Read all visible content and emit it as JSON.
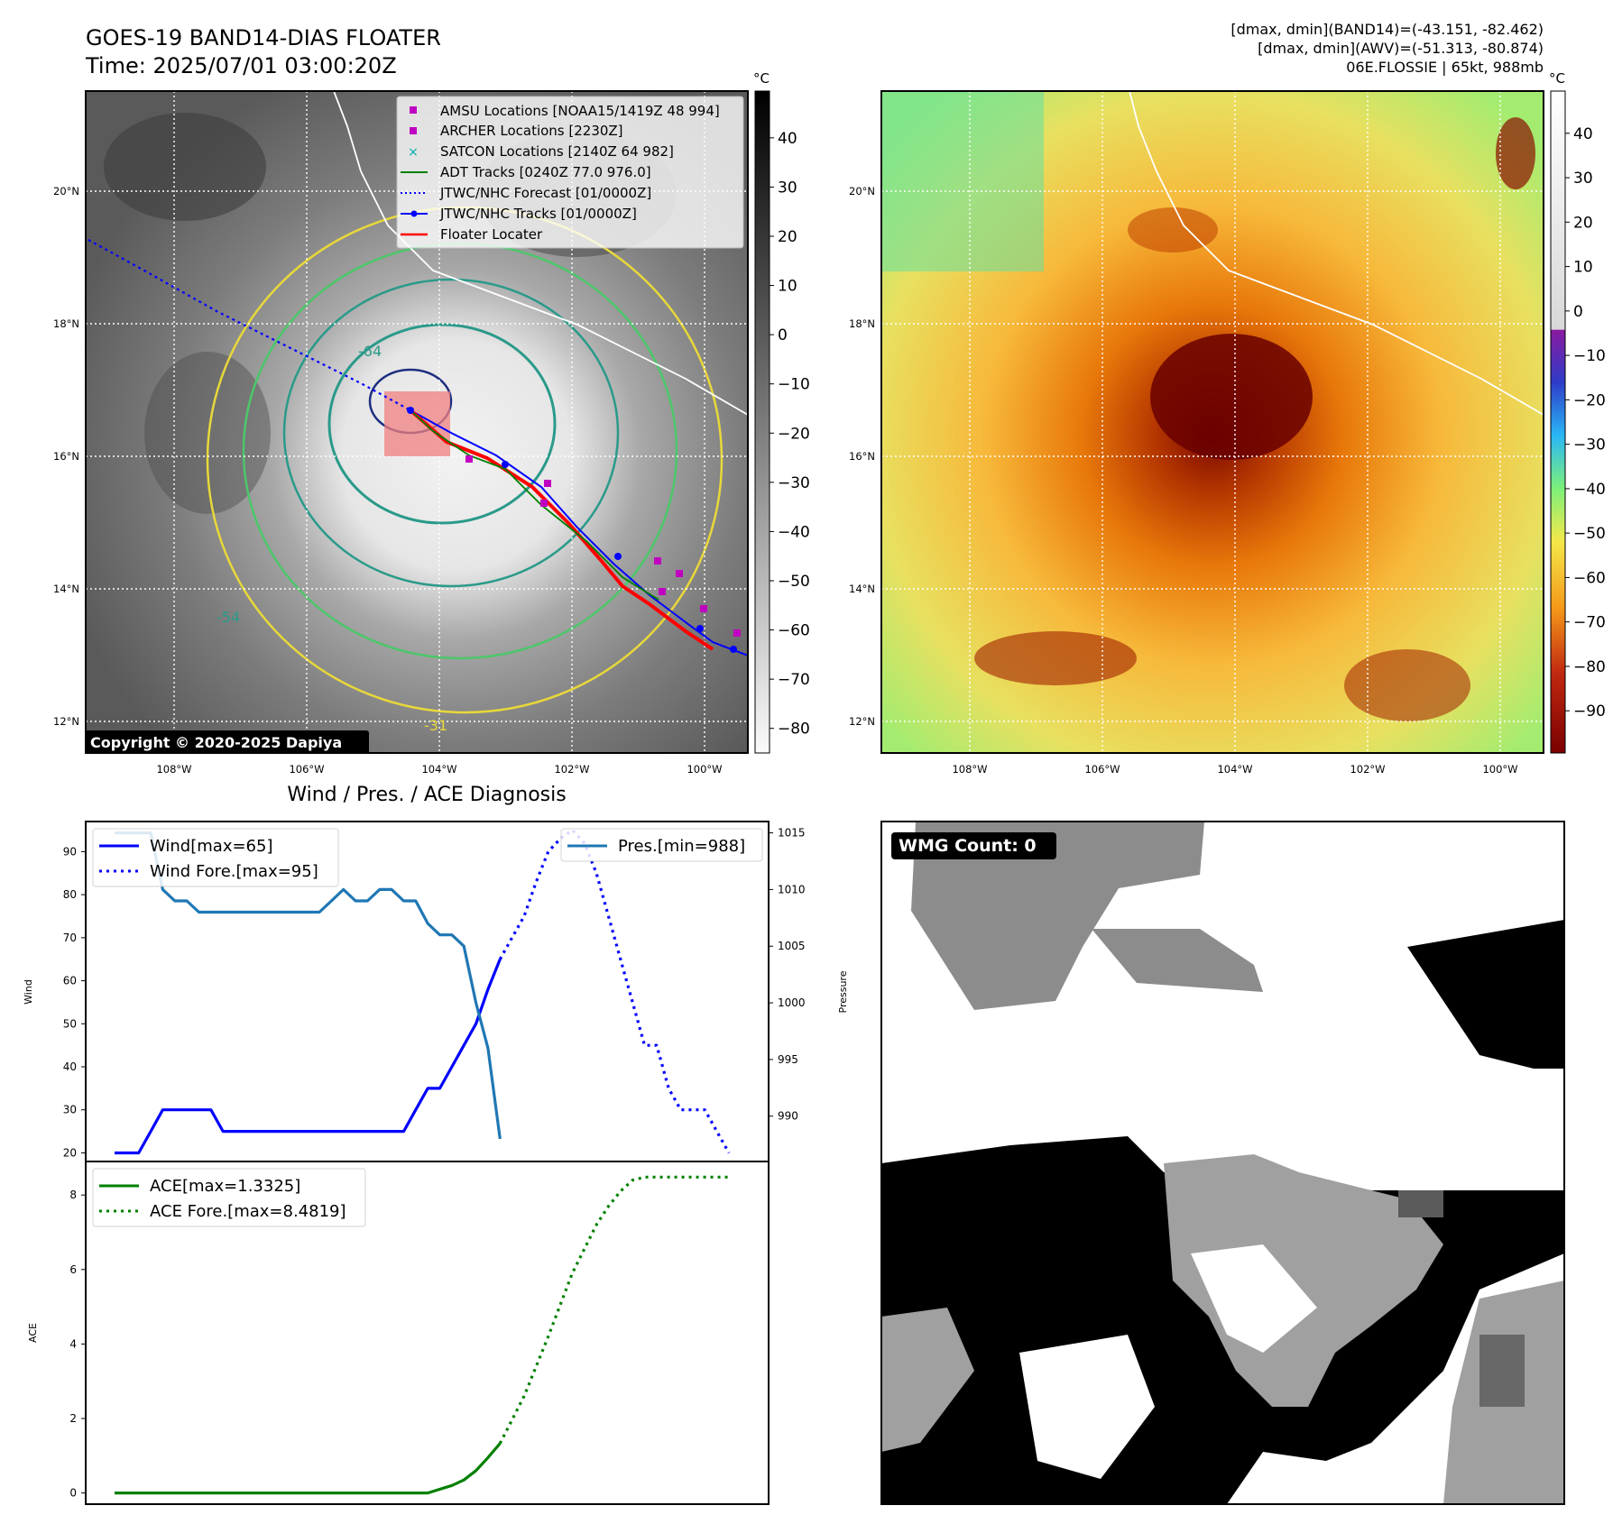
{
  "header": {
    "title_line1": "GOES-19 BAND14-DIAS FLOATER",
    "title_line2": "Time: 2025/07/01 03:00:20Z",
    "info_line1": "[dmax, dmin](BAND14)=(-43.151, -82.462)",
    "info_line2": "[dmax, dmin](AWV)=(-51.313, -80.874)",
    "info_line3": "06E.FLOSSIE | 65kt, 988mb"
  },
  "map": {
    "lat_labels": [
      "20°N",
      "18°N",
      "16°N",
      "14°N",
      "12°N"
    ],
    "lon_labels": [
      "108°W",
      "106°W",
      "104°W",
      "102°W",
      "100°W"
    ],
    "copyright": "Copyright © 2020-2025 Dapiya",
    "contour_labels": [
      "-64",
      "-54",
      "-31"
    ],
    "legend": [
      {
        "label": "AMSU Locations [NOAA15/1419Z 48 994]",
        "marker": "square",
        "color": "#c000c0"
      },
      {
        "label": "ARCHER Locations [2230Z]",
        "marker": "square",
        "color": "#c000c0"
      },
      {
        "label": "SATCON Locations [2140Z 64 982]",
        "marker": "x",
        "color": "#00b0b0"
      },
      {
        "label": "ADT Tracks [0240Z 77.0 976.0]",
        "marker": "line",
        "color": "#008000"
      },
      {
        "label": "JTWC/NHC Forecast [01/0000Z]",
        "marker": "dotted",
        "color": "#0000ff"
      },
      {
        "label": "JTWC/NHC Tracks [01/0000Z]",
        "marker": "line-dot",
        "color": "#0000ff"
      },
      {
        "label": "Floater Locater",
        "marker": "line",
        "color": "#ff0000"
      }
    ]
  },
  "colorbar_left": {
    "unit": "°C",
    "ticks": [
      "40",
      "30",
      "20",
      "10",
      "0",
      "−10",
      "−20",
      "−30",
      "−40",
      "−50",
      "−60",
      "−70",
      "−80"
    ]
  },
  "colorbar_right": {
    "unit": "°C",
    "ticks": [
      "40",
      "30",
      "20",
      "10",
      "0",
      "−10",
      "−20",
      "−30",
      "−40",
      "−50",
      "−60",
      "−70",
      "−80",
      "−90"
    ]
  },
  "chart_data": [
    {
      "type": "line",
      "title": "Wind / Pres. / ACE Diagnosis",
      "ylabel": "Wind",
      "ylabel_right": "Pressure",
      "ylim": [
        18,
        97
      ],
      "ylim_right": [
        986,
        1016
      ],
      "yticks": [
        20,
        30,
        40,
        50,
        60,
        70,
        80,
        90
      ],
      "yticks_right": [
        990,
        995,
        1000,
        1005,
        1010,
        1015
      ],
      "x_count": 52,
      "series": [
        {
          "name": "Wind[max=65]",
          "axis": "left",
          "style": "solid",
          "color": "#0000ff",
          "x": [
            0,
            1,
            2,
            3,
            4,
            5,
            6,
            7,
            8,
            9,
            10,
            11,
            12,
            13,
            14,
            15,
            16,
            17,
            18,
            19,
            20,
            21,
            22,
            23,
            24,
            25,
            26,
            27,
            28,
            29,
            30,
            31,
            32
          ],
          "values": [
            20,
            20,
            20,
            25,
            30,
            30,
            30,
            30,
            30,
            25,
            25,
            25,
            25,
            25,
            25,
            25,
            25,
            25,
            25,
            25,
            25,
            25,
            25,
            25,
            25,
            30,
            35,
            35,
            40,
            45,
            50,
            58,
            65
          ]
        },
        {
          "name": "Wind Fore.[max=95]",
          "axis": "left",
          "style": "dotted",
          "color": "#0000ff",
          "x": [
            32,
            33,
            34,
            35,
            36,
            37,
            38,
            39,
            40,
            41,
            42,
            43,
            44,
            45,
            46,
            47,
            48,
            49,
            50,
            51
          ],
          "values": [
            65,
            70,
            75,
            83,
            90,
            93,
            95,
            92,
            85,
            75,
            65,
            55,
            45,
            45,
            35,
            30,
            30,
            30,
            25,
            20
          ]
        },
        {
          "name": "Pres.[min=988]",
          "axis": "right",
          "style": "solid",
          "color": "#1f77b4",
          "x": [
            0,
            1,
            2,
            3,
            4,
            5,
            6,
            7,
            8,
            9,
            10,
            11,
            12,
            13,
            14,
            15,
            16,
            17,
            18,
            19,
            20,
            21,
            22,
            23,
            24,
            25,
            26,
            27,
            28,
            29,
            30,
            31,
            32
          ],
          "values": [
            1015,
            1015,
            1015,
            1015,
            1010,
            1009,
            1009,
            1008,
            1008,
            1008,
            1008,
            1008,
            1008,
            1008,
            1008,
            1008,
            1008,
            1008,
            1009,
            1010,
            1009,
            1009,
            1010,
            1010,
            1009,
            1009,
            1007,
            1006,
            1006,
            1005,
            1000,
            996,
            988
          ]
        }
      ],
      "legend": [
        "Wind[max=65]",
        "Wind Fore.[max=95]",
        "Pres.[min=988]"
      ]
    },
    {
      "type": "line",
      "ylabel": "ACE",
      "ylim": [
        -0.3,
        8.9
      ],
      "yticks": [
        0,
        2,
        4,
        6,
        8
      ],
      "x_count": 52,
      "series": [
        {
          "name": "ACE[max=1.3325]",
          "style": "solid",
          "color": "#008000",
          "x": [
            0,
            2,
            4,
            6,
            8,
            10,
            12,
            14,
            16,
            18,
            20,
            22,
            24,
            26,
            28,
            29,
            30,
            31,
            32
          ],
          "values": [
            0,
            0,
            0,
            0,
            0,
            0,
            0,
            0,
            0,
            0,
            0,
            0,
            0,
            0,
            0.2,
            0.35,
            0.6,
            0.95,
            1.3325
          ]
        },
        {
          "name": "ACE Fore.[max=8.4819]",
          "style": "dotted",
          "color": "#008000",
          "x": [
            32,
            34,
            36,
            38,
            40,
            41,
            42,
            43,
            44,
            45,
            46,
            48,
            50,
            51
          ],
          "values": [
            1.3325,
            2.6,
            4.2,
            5.9,
            7.2,
            7.7,
            8.1,
            8.4,
            8.48,
            8.48,
            8.48,
            8.48,
            8.48,
            8.48
          ]
        }
      ],
      "legend": [
        "ACE[max=1.3325]",
        "ACE Fore.[max=8.4819]"
      ]
    }
  ],
  "wmg": {
    "label": "WMG Count: 0"
  }
}
